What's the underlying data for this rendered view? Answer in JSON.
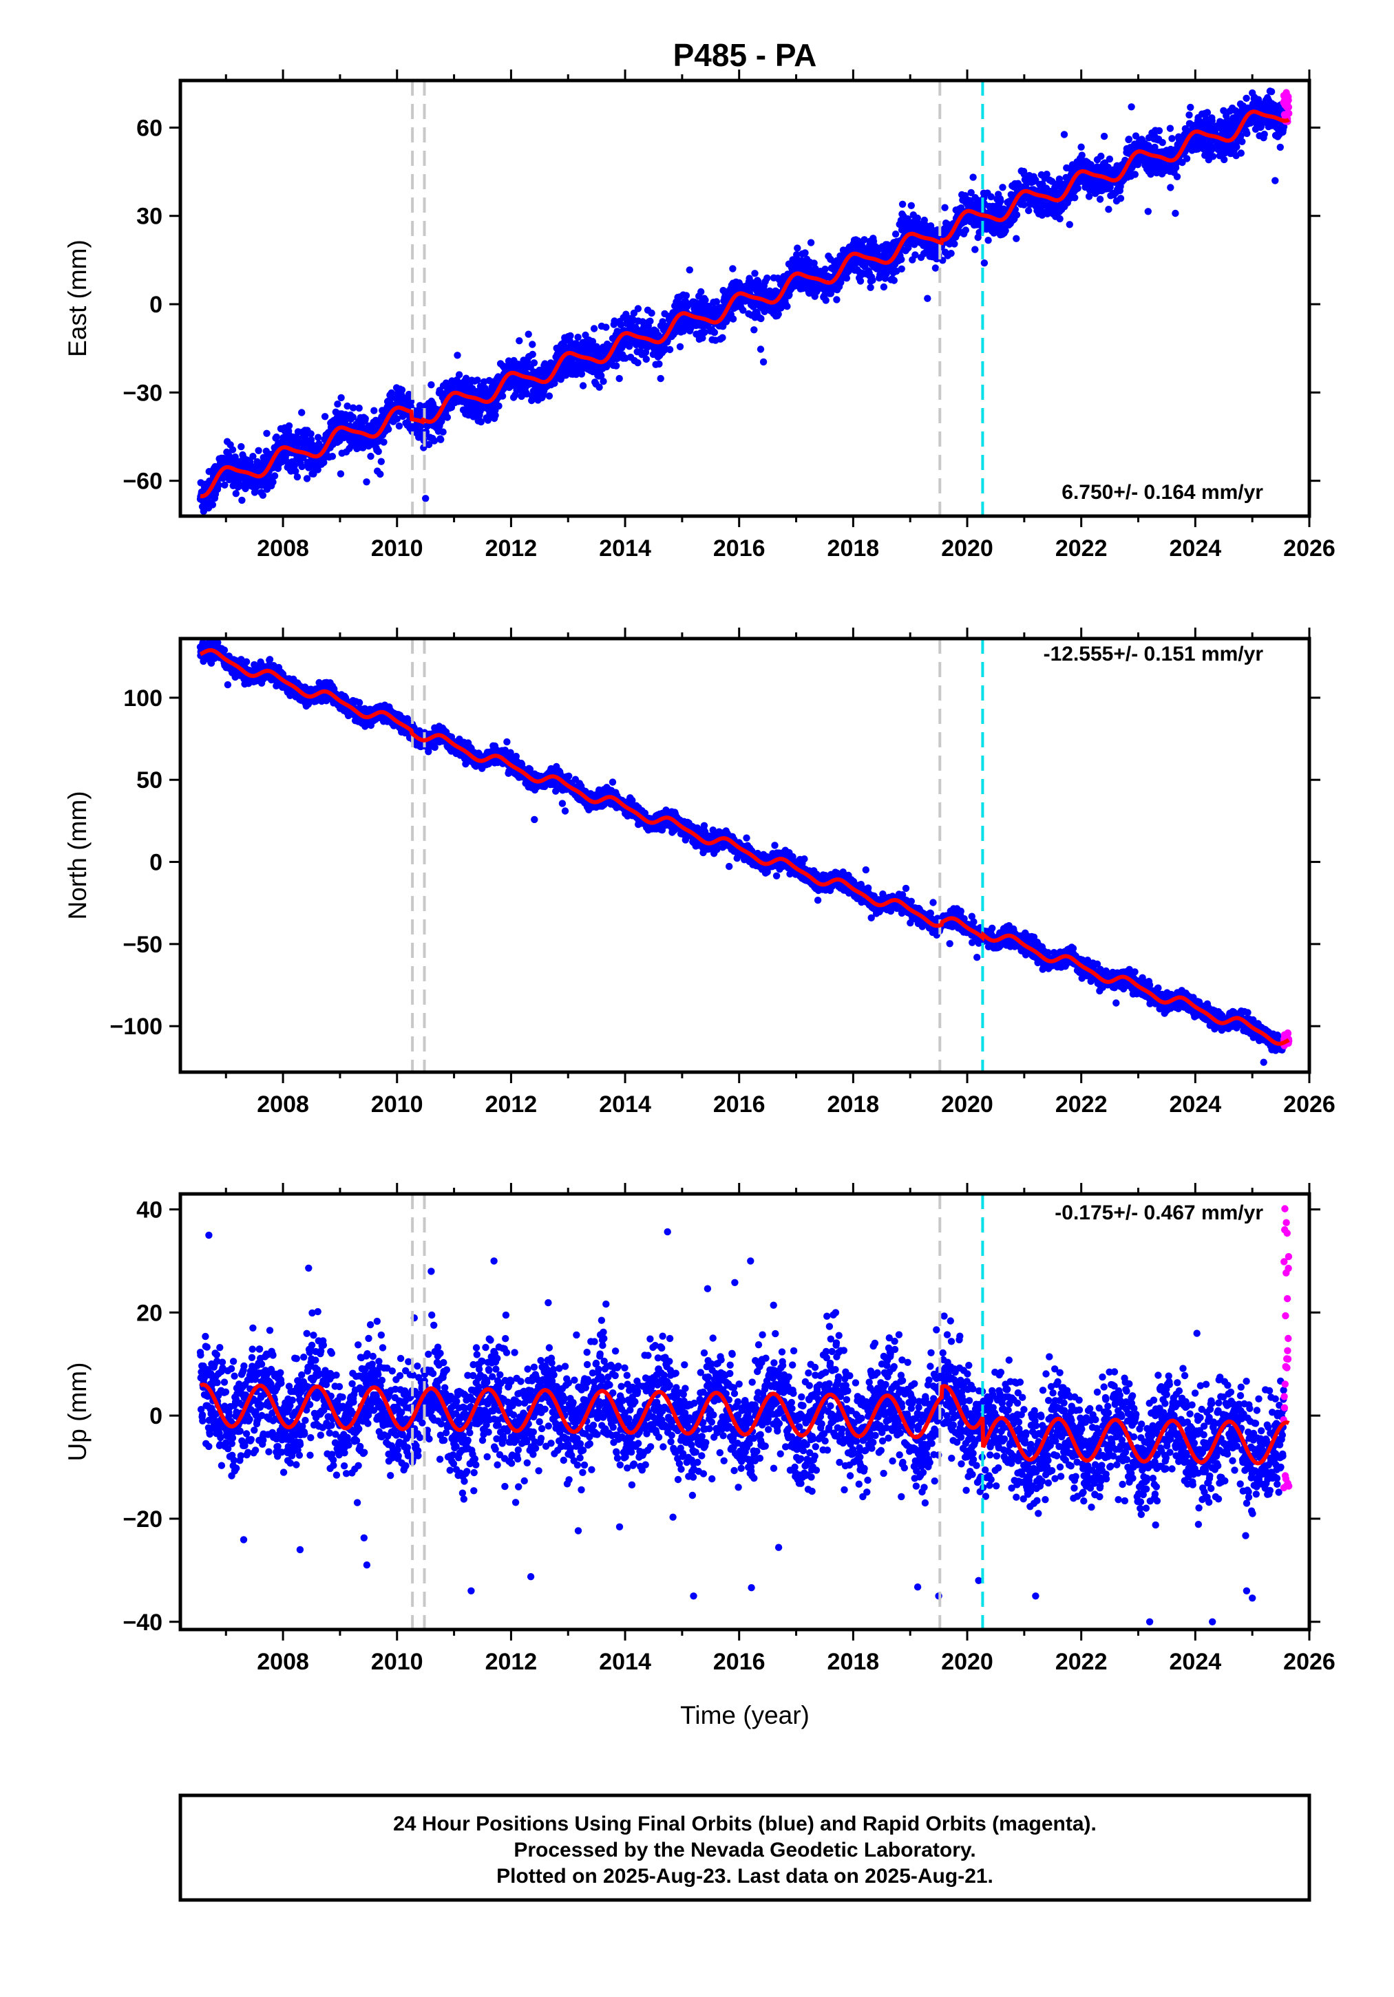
{
  "title": "P485 - PA",
  "xlabel": "Time (year)",
  "footer": {
    "lines": [
      "24 Hour Positions Using Final Orbits (blue) and Rapid Orbits (magenta).",
      "Processed by the Nevada Geodetic Laboratory.",
      "Plotted on 2025-Aug-23. Last data on 2025-Aug-21."
    ]
  },
  "colors": {
    "final_orbits": "#0000ff",
    "rapid_orbits": "#ff00ff",
    "model_fit": "#ff0000",
    "equipment_change_lines": "#c8c8c8",
    "earthquake_line": "#00e0e8",
    "frame": "#000000"
  },
  "chart_data": [
    {
      "type": "scatter",
      "component": "East",
      "ylabel": "East (mm)",
      "xlim": [
        2006.2,
        2026.0
      ],
      "ylim": [
        -72,
        76
      ],
      "xticks": [
        2008,
        2010,
        2012,
        2014,
        2016,
        2018,
        2020,
        2022,
        2024,
        2026
      ],
      "yticks": [
        -60,
        -30,
        0,
        30,
        60
      ],
      "x_start": 2006.55,
      "x_end": 2025.64,
      "rate_label": "6.750+/- 0.164 mm/yr",
      "rate_mm_per_yr": 6.75,
      "fit": {
        "intercept_at_start": -62,
        "annual_amplitude": 3.2,
        "annual_phase": 0.8,
        "semiannual_amplitude": 0.8,
        "offsets": [
          {
            "x": 2010.25,
            "dy": -2.5
          },
          {
            "x": 2010.45,
            "dy": 0.8
          },
          {
            "x": 2019.55,
            "dy": 1.0
          }
        ]
      },
      "scatter_sigma": 3.3,
      "rapid_orbit_values": {
        "x_from": 2025.55,
        "y_min": 62,
        "y_max": 72
      },
      "equipment_change_years": [
        2010.27,
        2010.48,
        2019.52
      ],
      "earthquake_years": [
        2020.27
      ],
      "outliers": [
        {
          "x": 2010.5,
          "y": -66
        },
        {
          "x": 2020.3,
          "y": 14
        },
        {
          "x": 2025.4,
          "y": 42
        }
      ]
    },
    {
      "type": "scatter",
      "component": "North",
      "ylabel": "North (mm)",
      "xlim": [
        2006.2,
        2026.0
      ],
      "ylim": [
        -128,
        136
      ],
      "xticks": [
        2008,
        2010,
        2012,
        2014,
        2016,
        2018,
        2020,
        2022,
        2024,
        2026
      ],
      "yticks": [
        -100,
        -50,
        0,
        50,
        100
      ],
      "x_start": 2006.55,
      "x_end": 2025.64,
      "rate_label": "-12.555+/- 0.151 mm/yr",
      "rate_mm_per_yr": -12.555,
      "fit": {
        "intercept_at_start": 128,
        "annual_amplitude": 3.0,
        "annual_phase": 0.6,
        "semiannual_amplitude": 1.0,
        "offsets": [
          {
            "x": 2010.25,
            "dy": -1.5
          },
          {
            "x": 2019.55,
            "dy": 1.5
          },
          {
            "x": 2020.27,
            "dy": 2.0
          }
        ]
      },
      "scatter_sigma": 2.6,
      "rapid_orbit_values": {
        "x_from": 2025.55,
        "y_min": -112,
        "y_max": -104
      },
      "equipment_change_years": [
        2010.27,
        2010.48,
        2019.52
      ],
      "earthquake_years": [
        2020.27
      ],
      "outliers": [
        {
          "x": 2025.2,
          "y": -122
        }
      ]
    },
    {
      "type": "scatter",
      "component": "Up",
      "ylabel": "Up (mm)",
      "xlim": [
        2006.2,
        2026.0
      ],
      "ylim": [
        -41.5,
        43
      ],
      "xticks": [
        2008,
        2010,
        2012,
        2014,
        2016,
        2018,
        2020,
        2022,
        2024,
        2026
      ],
      "yticks": [
        -40,
        -20,
        0,
        20,
        40
      ],
      "x_start": 2006.55,
      "x_end": 2025.64,
      "rate_label": "-0.175+/- 0.467 mm/yr",
      "rate_mm_per_yr": -0.175,
      "fit": {
        "intercept_at_start": 2,
        "annual_amplitude": 4.0,
        "annual_phase": 0.35,
        "semiannual_amplitude": 0.0,
        "offsets": [
          {
            "x": 2019.55,
            "dy": 2.0
          },
          {
            "x": 2020.27,
            "dy": -6.0
          }
        ]
      },
      "scatter_sigma": 5.2,
      "rapid_orbit_values": {
        "x_from": 2025.55,
        "y_min": -15,
        "y_max": 41
      },
      "equipment_change_years": [
        2010.27,
        2010.48,
        2019.52
      ],
      "earthquake_years": [
        2020.27
      ],
      "outliers": [
        {
          "x": 2006.7,
          "y": 35
        },
        {
          "x": 2011.7,
          "y": 30
        },
        {
          "x": 2016.2,
          "y": 30
        },
        {
          "x": 2010.6,
          "y": 28
        },
        {
          "x": 2008.3,
          "y": -26
        },
        {
          "x": 2011.3,
          "y": -34
        },
        {
          "x": 2015.2,
          "y": -35
        },
        {
          "x": 2019.5,
          "y": -35
        },
        {
          "x": 2020.2,
          "y": -32
        },
        {
          "x": 2023.2,
          "y": -40
        },
        {
          "x": 2024.3,
          "y": -40
        },
        {
          "x": 2024.9,
          "y": -34
        },
        {
          "x": 2021.2,
          "y": -35
        }
      ]
    }
  ]
}
